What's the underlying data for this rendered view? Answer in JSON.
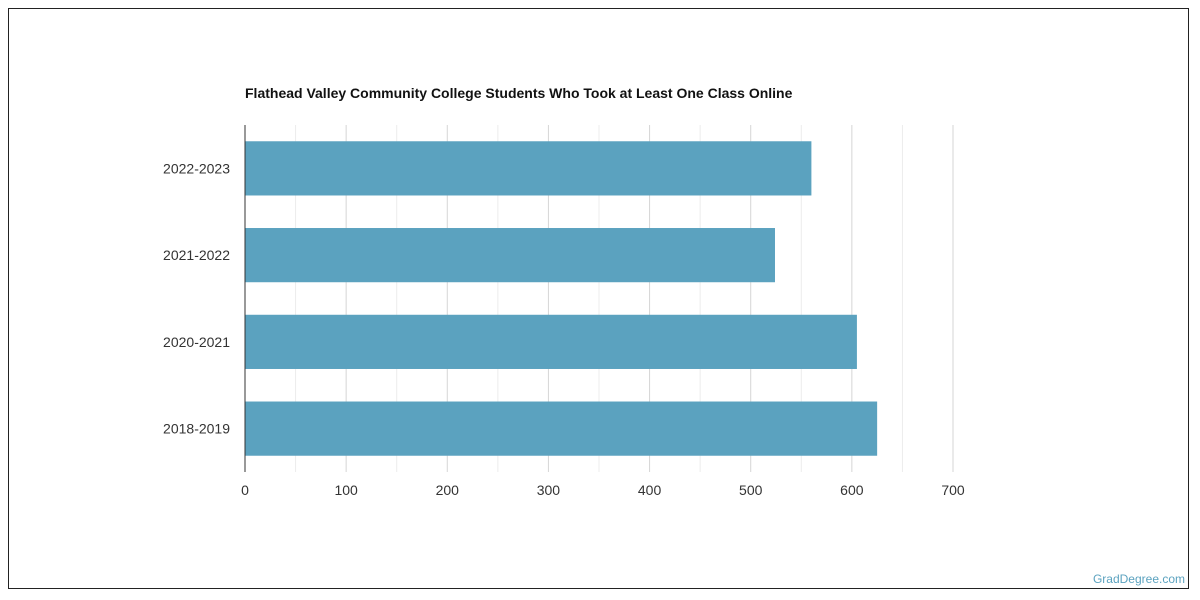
{
  "chart_data": {
    "type": "bar",
    "orientation": "horizontal",
    "title": "Flathead Valley Community College Students Who Took at Least One Class Online",
    "categories": [
      "2022-2023",
      "2021-2022",
      "2020-2021",
      "2018-2019"
    ],
    "values": [
      560,
      524,
      605,
      625
    ],
    "xlim": [
      0,
      700
    ],
    "x_ticks": [
      "0",
      "100",
      "200",
      "300",
      "400",
      "500",
      "600",
      "700"
    ],
    "grid": true,
    "bar_color": "#5ba2bf"
  },
  "watermark": "GradDegree.com"
}
